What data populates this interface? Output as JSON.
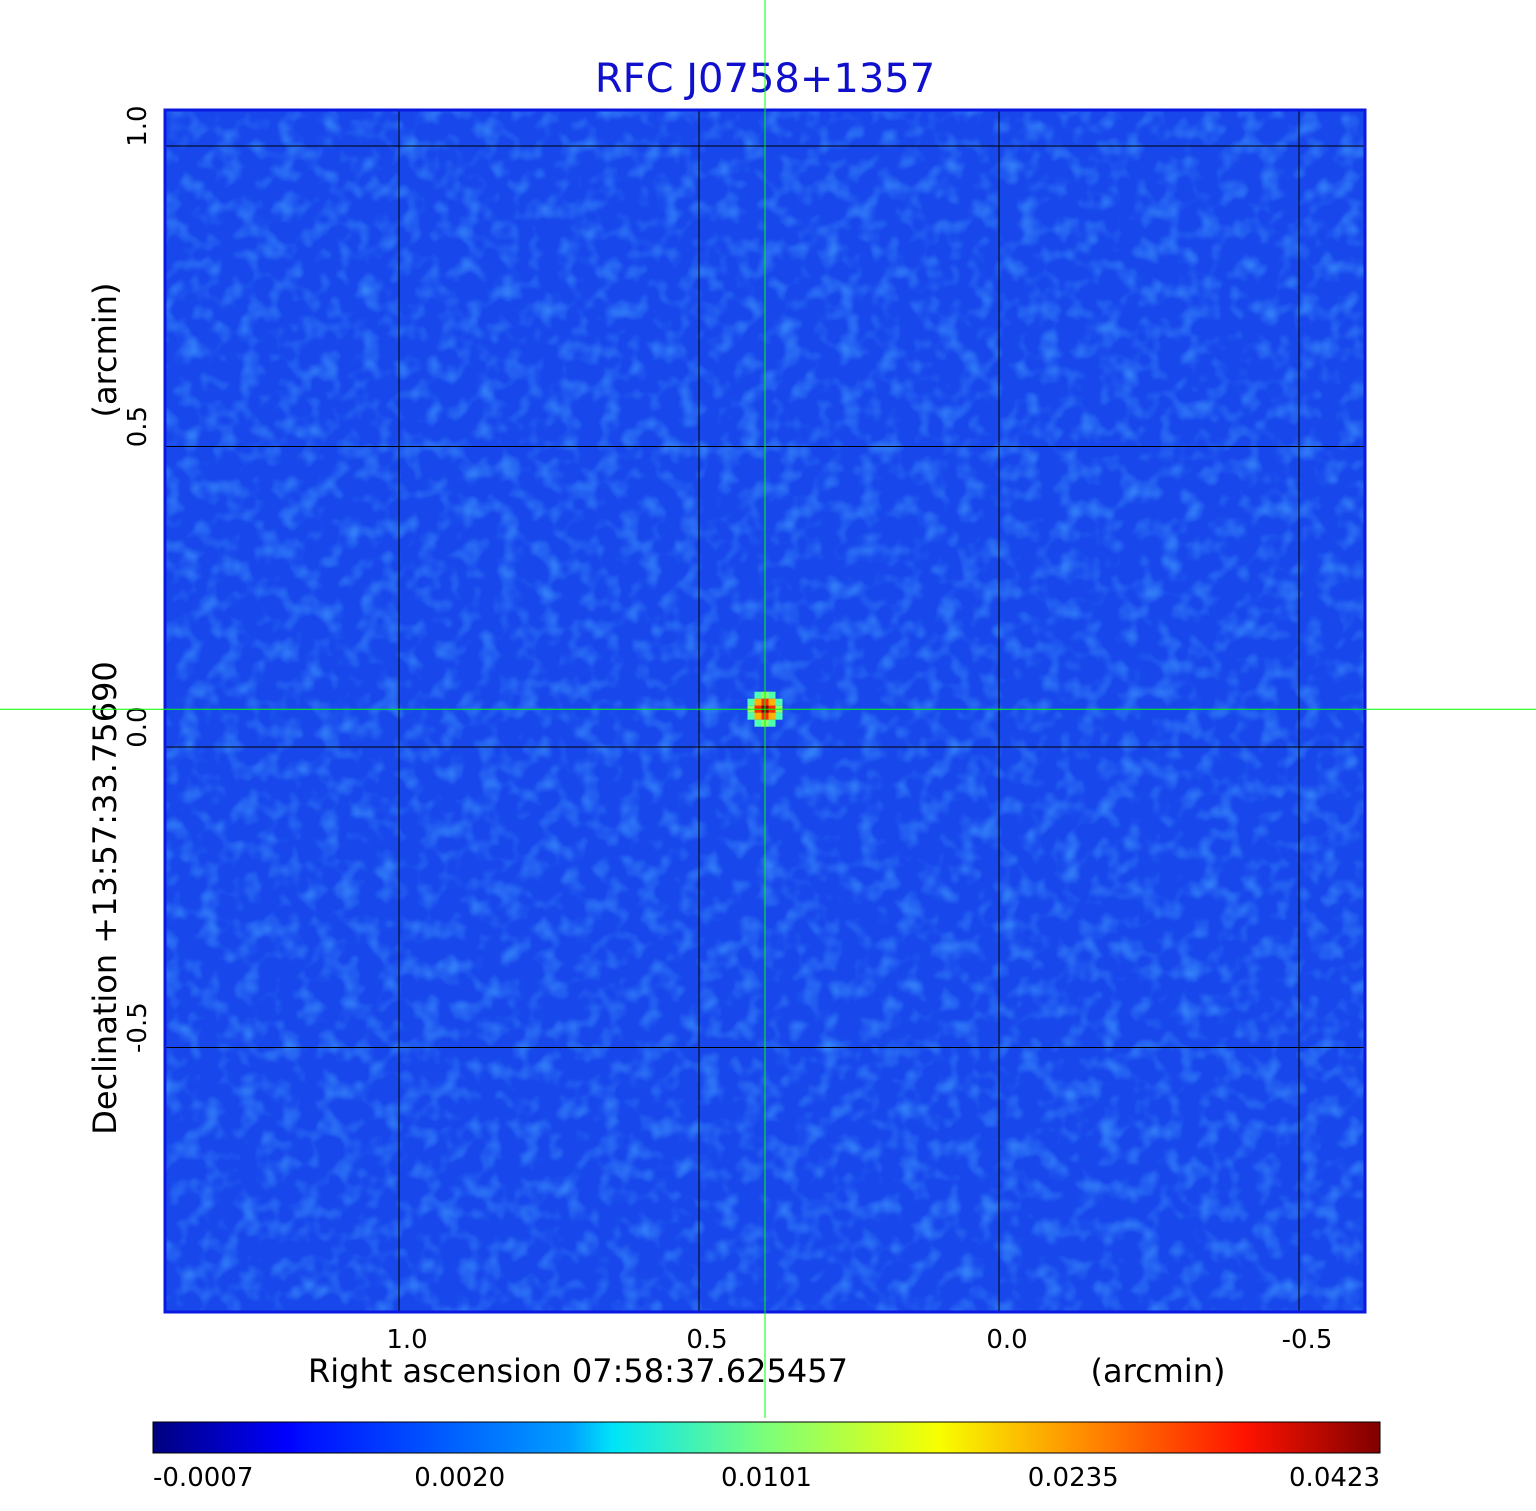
{
  "chart_data": {
    "type": "heatmap",
    "title": "RFC J0758+1357",
    "xlabel": "Right ascension  07:58:37.625457",
    "xunit": "(arcmin)",
    "ylabel": "Declination  +13:57:33.75690",
    "yunit": "(arcmin)",
    "xlim": [
      1.39,
      -0.61
    ],
    "ylim": [
      -0.94,
      1.06
    ],
    "x_ticks": [
      {
        "value": 1.0,
        "label": "1.0"
      },
      {
        "value": 0.5,
        "label": "0.5"
      },
      {
        "value": 0.0,
        "label": "0.0"
      },
      {
        "value": -0.5,
        "label": "-0.5"
      }
    ],
    "y_ticks": [
      {
        "value": 1.0,
        "label": "1.0"
      },
      {
        "value": 0.5,
        "label": "0.5"
      },
      {
        "value": 0.0,
        "label": "0.0"
      },
      {
        "value": -0.5,
        "label": "-0.5"
      }
    ],
    "grid": true,
    "colormap": "jet",
    "colorbar": {
      "placement": "bottom",
      "ticks": [
        {
          "value": -0.0007,
          "label": "-0.0007"
        },
        {
          "value": 0.002,
          "label": "0.0020"
        },
        {
          "value": 0.0101,
          "label": "0.0101"
        },
        {
          "value": 0.0235,
          "label": "0.0235"
        },
        {
          "value": 0.0423,
          "label": "0.0423"
        }
      ]
    },
    "source": {
      "x": 0.39,
      "y": 0.063,
      "peak": 0.0423
    },
    "crosshair": {
      "x": 0.39,
      "y": 0.063,
      "color": "#00ff00"
    },
    "background_level": 0.0003
  }
}
